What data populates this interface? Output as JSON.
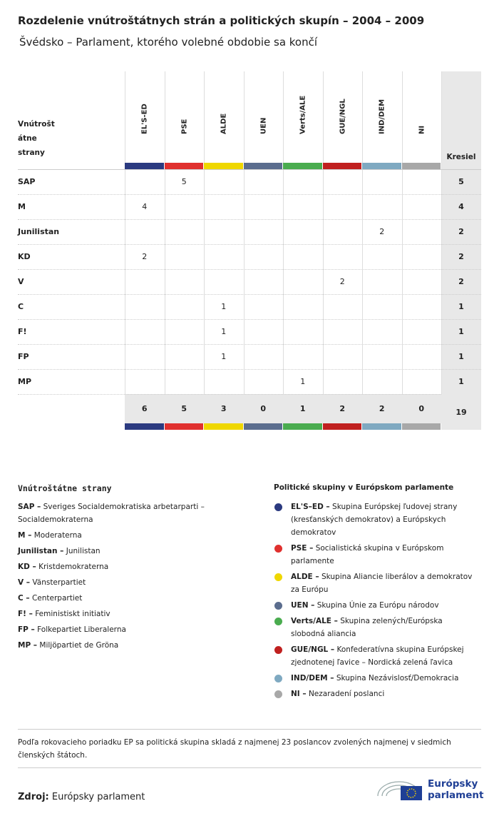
{
  "title": "Rozdelenie vnútroštátnych strán a politických skupín – 2004 – 2009",
  "subtitle": "Švédsko – Parlament, ktorého volebné obdobie sa končí",
  "table": {
    "row_header": [
      "Vnútrošt",
      "átne",
      "strany"
    ],
    "total_header": "Kresiel",
    "groups": [
      {
        "name": "EL'S-ED",
        "color": "#2b3a80"
      },
      {
        "name": "PSE",
        "color": "#e0302e"
      },
      {
        "name": "ALDE",
        "color": "#efd700"
      },
      {
        "name": "UEN",
        "color": "#5b6d8e"
      },
      {
        "name": "Verts/ALE",
        "color": "#4aac4f"
      },
      {
        "name": "GUE/NGL",
        "color": "#c0201f"
      },
      {
        "name": "IND/DEM",
        "color": "#7fa9c1"
      },
      {
        "name": "NI",
        "color": "#a8a8a8"
      }
    ],
    "rows": [
      {
        "party": "SAP",
        "cells": [
          null,
          5,
          null,
          null,
          null,
          null,
          null,
          null
        ],
        "total": 5
      },
      {
        "party": "M",
        "cells": [
          4,
          null,
          null,
          null,
          null,
          null,
          null,
          null
        ],
        "total": 4
      },
      {
        "party": "Junilistan",
        "cells": [
          null,
          null,
          null,
          null,
          null,
          null,
          2,
          null
        ],
        "total": 2
      },
      {
        "party": "KD",
        "cells": [
          2,
          null,
          null,
          null,
          null,
          null,
          null,
          null
        ],
        "total": 2
      },
      {
        "party": "V",
        "cells": [
          null,
          null,
          null,
          null,
          null,
          2,
          null,
          null
        ],
        "total": 2
      },
      {
        "party": "C",
        "cells": [
          null,
          null,
          1,
          null,
          null,
          null,
          null,
          null
        ],
        "total": 1
      },
      {
        "party": "F!",
        "cells": [
          null,
          null,
          1,
          null,
          null,
          null,
          null,
          null
        ],
        "total": 1
      },
      {
        "party": "FP",
        "cells": [
          null,
          null,
          1,
          null,
          null,
          null,
          null,
          null
        ],
        "total": 1
      },
      {
        "party": "MP",
        "cells": [
          null,
          null,
          null,
          null,
          1,
          null,
          null,
          null
        ],
        "total": 1
      }
    ],
    "column_totals": [
      6,
      5,
      3,
      0,
      1,
      2,
      2,
      0
    ],
    "grand_total": 19
  },
  "parties_legend": {
    "title": "Vnútroštátne strany",
    "items": [
      {
        "key": "SAP –",
        "text": "Sveriges Socialdemokratiska arbetarparti – Socialdemokraterna"
      },
      {
        "key": "M –",
        "text": "Moderaterna"
      },
      {
        "key": "Junilistan –",
        "text": "Junilistan"
      },
      {
        "key": "KD –",
        "text": "Kristdemokraterna"
      },
      {
        "key": "V –",
        "text": "Vänsterpartiet"
      },
      {
        "key": "C –",
        "text": "Centerpartiet"
      },
      {
        "key": "F! –",
        "text": "Feministiskt initiativ"
      },
      {
        "key": "FP –",
        "text": "Folkepartiet Liberalerna"
      },
      {
        "key": "MP –",
        "text": "Miljöpartiet de Gröna"
      }
    ]
  },
  "groups_legend": {
    "title": "Politické skupiny v Európskom parlamente",
    "items": [
      {
        "key": "EL'S–ED –",
        "text": "Skupina Európskej ľudovej strany (kresťanských demokratov) a Európskych demokratov"
      },
      {
        "key": "PSE –",
        "text": "Socialistická skupina v Európskom parlamente"
      },
      {
        "key": "ALDE –",
        "text": "Skupina Aliancie liberálov a demokratov za Európu"
      },
      {
        "key": "UEN –",
        "text": "Skupina Únie za Európu národov"
      },
      {
        "key": "Verts/ALE –",
        "text": "Skupina zelených/Európska slobodná aliancia"
      },
      {
        "key": "GUE/NGL –",
        "text": "Konfederatívna skupina Európskej zjednotenej ľavice – Nordická zelená ľavica"
      },
      {
        "key": "IND/DEM –",
        "text": "Skupina Nezávislosť/Demokracia"
      },
      {
        "key": "NI –",
        "text": "Nezaradení poslanci"
      }
    ]
  },
  "note": "Podľa rokovacieho poriadku EP sa politická skupina skladá z najmenej 23 poslancov zvolených najmenej v siedmich členských štátoch.",
  "source": {
    "label": "Zdroj:",
    "text": "Európsky parlament"
  },
  "logo": {
    "line1": "Európsky",
    "line2": "parlament"
  }
}
